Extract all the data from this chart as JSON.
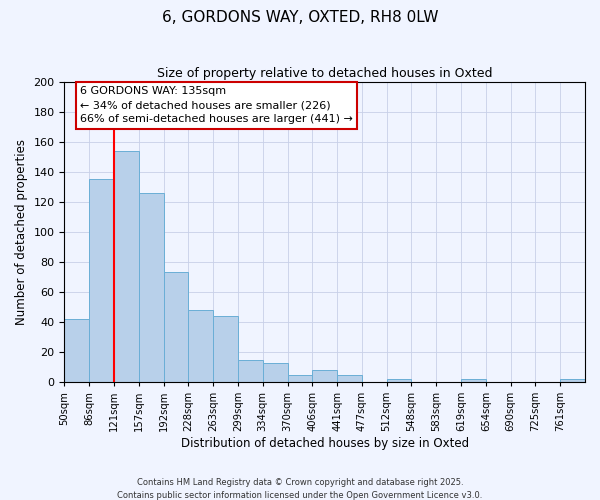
{
  "title": "6, GORDONS WAY, OXTED, RH8 0LW",
  "subtitle": "Size of property relative to detached houses in Oxted",
  "xlabel": "Distribution of detached houses by size in Oxted",
  "ylabel": "Number of detached properties",
  "bar_values": [
    42,
    135,
    154,
    126,
    73,
    48,
    44,
    15,
    13,
    5,
    8,
    5,
    0,
    2,
    0,
    0,
    2,
    0,
    0,
    0,
    2
  ],
  "bar_labels": [
    "50sqm",
    "86sqm",
    "121sqm",
    "157sqm",
    "192sqm",
    "228sqm",
    "263sqm",
    "299sqm",
    "334sqm",
    "370sqm",
    "406sqm",
    "441sqm",
    "477sqm",
    "512sqm",
    "548sqm",
    "583sqm",
    "619sqm",
    "654sqm",
    "690sqm",
    "725sqm",
    "761sqm"
  ],
  "bar_color": "#b8d0ea",
  "bar_edge_color": "#6aaed6",
  "ylim": [
    0,
    200
  ],
  "yticks": [
    0,
    20,
    40,
    60,
    80,
    100,
    120,
    140,
    160,
    180,
    200
  ],
  "vline_index": 2,
  "vline_color": "red",
  "annotation_title": "6 GORDONS WAY: 135sqm",
  "annotation_line1": "← 34% of detached houses are smaller (226)",
  "annotation_line2": "66% of semi-detached houses are larger (441) →",
  "footer1": "Contains HM Land Registry data © Crown copyright and database right 2025.",
  "footer2": "Contains public sector information licensed under the Open Government Licence v3.0.",
  "bg_color": "#f0f4ff",
  "grid_color": "#c8d0e8"
}
